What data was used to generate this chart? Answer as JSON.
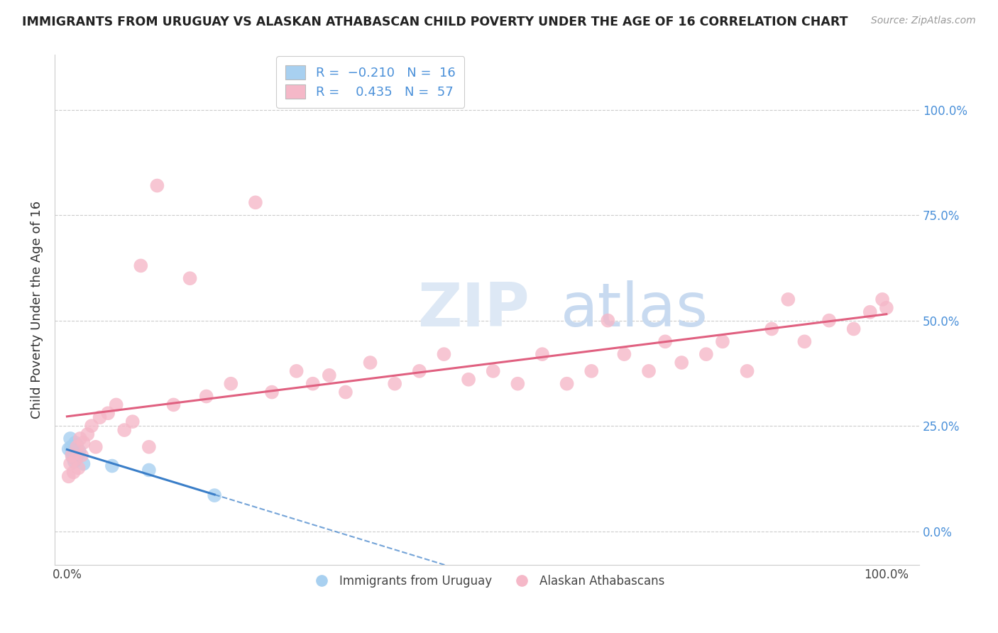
{
  "title": "IMMIGRANTS FROM URUGUAY VS ALASKAN ATHABASCAN CHILD POVERTY UNDER THE AGE OF 16 CORRELATION CHART",
  "source": "Source: ZipAtlas.com",
  "ylabel": "Child Poverty Under the Age of 16",
  "legend_r_blue": "-0.210",
  "legend_n_blue": "16",
  "legend_r_pink": "0.435",
  "legend_n_pink": "57",
  "blue_x": [
    0.002,
    0.004,
    0.005,
    0.006,
    0.007,
    0.008,
    0.009,
    0.01,
    0.011,
    0.012,
    0.013,
    0.015,
    0.02,
    0.055,
    0.1,
    0.18
  ],
  "blue_y": [
    0.195,
    0.22,
    0.2,
    0.185,
    0.175,
    0.19,
    0.165,
    0.21,
    0.17,
    0.205,
    0.18,
    0.19,
    0.16,
    0.155,
    0.145,
    0.085
  ],
  "pink_x": [
    0.002,
    0.004,
    0.006,
    0.008,
    0.01,
    0.012,
    0.014,
    0.016,
    0.018,
    0.02,
    0.025,
    0.03,
    0.035,
    0.04,
    0.05,
    0.06,
    0.07,
    0.08,
    0.09,
    0.1,
    0.11,
    0.13,
    0.15,
    0.17,
    0.2,
    0.23,
    0.25,
    0.28,
    0.3,
    0.32,
    0.34,
    0.37,
    0.4,
    0.43,
    0.46,
    0.49,
    0.52,
    0.55,
    0.58,
    0.61,
    0.64,
    0.66,
    0.68,
    0.71,
    0.73,
    0.75,
    0.78,
    0.8,
    0.83,
    0.86,
    0.88,
    0.9,
    0.93,
    0.96,
    0.98,
    0.995,
    1.0
  ],
  "pink_y": [
    0.13,
    0.16,
    0.18,
    0.14,
    0.17,
    0.2,
    0.15,
    0.22,
    0.18,
    0.21,
    0.23,
    0.25,
    0.2,
    0.27,
    0.28,
    0.3,
    0.24,
    0.26,
    0.63,
    0.2,
    0.82,
    0.3,
    0.6,
    0.32,
    0.35,
    0.78,
    0.33,
    0.38,
    0.35,
    0.37,
    0.33,
    0.4,
    0.35,
    0.38,
    0.42,
    0.36,
    0.38,
    0.35,
    0.42,
    0.35,
    0.38,
    0.5,
    0.42,
    0.38,
    0.45,
    0.4,
    0.42,
    0.45,
    0.38,
    0.48,
    0.55,
    0.45,
    0.5,
    0.48,
    0.52,
    0.55,
    0.53
  ],
  "blue_color": "#a8d0f0",
  "pink_color": "#f5b8c8",
  "blue_line_color": "#3a7ec8",
  "pink_line_color": "#e06080",
  "watermark_zip": "ZIP",
  "watermark_atlas": "atlas",
  "background_color": "#ffffff",
  "grid_color": "#cccccc",
  "right_tick_color": "#4a90d9",
  "title_fontsize": 12.5,
  "axis_fontsize": 12
}
